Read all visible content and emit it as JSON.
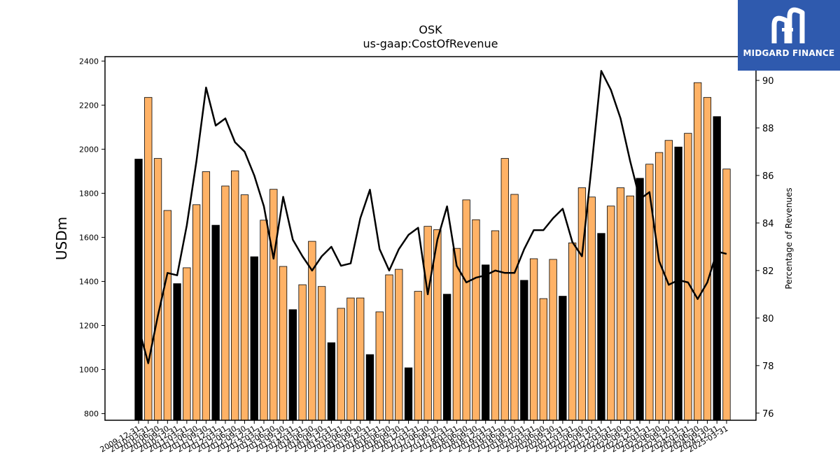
{
  "chart_data": {
    "type": "bar",
    "title": "OSK",
    "subtitle": "us-gaap:CostOfRevenue",
    "ylabel": "USDm",
    "y2label": "Percentage of Revenues",
    "ylim": [
      770,
      2420
    ],
    "y2lim": [
      75.7,
      91.0
    ],
    "yticks": [
      800,
      1000,
      1200,
      1400,
      1600,
      1800,
      2000,
      2200,
      2400
    ],
    "y2ticks": [
      76,
      78,
      80,
      82,
      84,
      86,
      88,
      90
    ],
    "categories": [
      "2009-12-31",
      "2010-03-31",
      "2010-06-30",
      "2010-09-30",
      "2010-12-31",
      "2011-03-31",
      "2011-06-30",
      "2011-09-30",
      "2011-12-31",
      "2012-03-31",
      "2012-06-30",
      "2012-09-30",
      "2012-12-31",
      "2013-03-31",
      "2013-06-30",
      "2013-09-30",
      "2013-12-31",
      "2014-03-31",
      "2014-06-30",
      "2014-09-30",
      "2014-12-31",
      "2015-03-31",
      "2015-06-30",
      "2015-09-30",
      "2015-12-31",
      "2016-03-31",
      "2016-06-30",
      "2016-09-30",
      "2016-12-31",
      "2017-03-31",
      "2017-06-30",
      "2017-09-30",
      "2017-12-31",
      "2018-03-31",
      "2018-06-30",
      "2018-09-30",
      "2018-12-31",
      "2019-03-31",
      "2019-06-30",
      "2019-09-30",
      "2019-12-31",
      "2020-03-31",
      "2020-06-30",
      "2020-09-30",
      "2020-12-31",
      "2021-03-31",
      "2021-06-30",
      "2021-09-30",
      "2021-12-31",
      "2022-03-31",
      "2022-06-30",
      "2022-09-30",
      "2022-12-31",
      "2023-03-31",
      "2023-06-30",
      "2023-09-30",
      "2023-12-31",
      "2024-03-31",
      "2024-06-30",
      "2024-09-30",
      "2024-12-31",
      "2025-03-31"
    ],
    "series": [
      {
        "kind": "bar",
        "values": [
          1955,
          2235,
          1958,
          1722,
          1390,
          1462,
          1748,
          1898,
          1655,
          1833,
          1902,
          1793,
          1512,
          1678,
          1818,
          1468,
          1272,
          1385,
          1582,
          1377,
          1122,
          1278,
          1325,
          1325,
          1068,
          1262,
          1430,
          1455,
          1008,
          1355,
          1650,
          1635,
          1342,
          1550,
          1770,
          1680,
          1475,
          1630,
          1958,
          1795,
          1405,
          1503,
          1322,
          1500,
          1333,
          1575,
          1825,
          1783,
          1618,
          1742,
          1825,
          1788,
          1868,
          1932,
          1985,
          2040,
          2010,
          2072,
          2302,
          2235,
          2148,
          1910
        ],
        "fourth_quarter_color": "#000000",
        "other_color": "#ffb266"
      },
      {
        "kind": "line",
        "axis": "right",
        "color": "#000000",
        "values": [
          79.6,
          78.1,
          80.1,
          81.9,
          81.8,
          83.9,
          86.6,
          89.7,
          88.1,
          88.4,
          87.4,
          87.0,
          86.0,
          84.7,
          82.5,
          85.1,
          83.3,
          82.6,
          82.0,
          82.6,
          83.0,
          82.2,
          82.3,
          84.2,
          85.4,
          82.9,
          82.0,
          82.9,
          83.5,
          83.8,
          81.0,
          83.3,
          84.7,
          82.2,
          81.5,
          81.7,
          81.8,
          82.0,
          81.9,
          81.9,
          82.9,
          83.7,
          83.7,
          84.2,
          84.6,
          83.2,
          82.6,
          86.4,
          90.4,
          89.6,
          88.4,
          86.6,
          85.0,
          85.3,
          82.4,
          81.4,
          81.6,
          81.5,
          80.8,
          81.5,
          82.8,
          82.7
        ]
      }
    ]
  },
  "logo": {
    "text": "MIDGARD FINANCE"
  }
}
